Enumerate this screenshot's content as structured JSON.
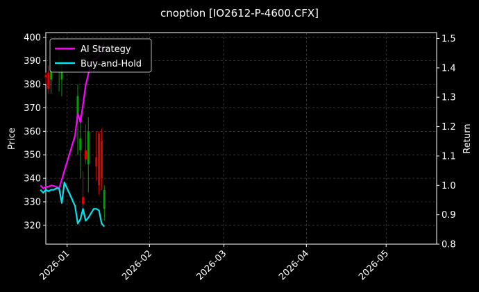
{
  "chart_data": {
    "type": "line",
    "title": "cnoption [IO2612-P-4600.CFX]",
    "xlabel": "",
    "ylabel_left": "Price",
    "ylabel_right": "Return",
    "xlim": [
      "2025-12-24",
      "2026-05-20"
    ],
    "ylim_left": [
      312,
      402
    ],
    "ylim_right": [
      0.8,
      1.52
    ],
    "xticks": [
      "2026-01",
      "2026-02",
      "2026-03",
      "2026-04",
      "2026-05"
    ],
    "yticks_left": [
      320,
      330,
      340,
      350,
      360,
      370,
      380,
      390,
      400
    ],
    "yticks_right": [
      "0.8",
      "0.9",
      "1.0",
      "1.1",
      "1.2",
      "1.3",
      "1.4",
      "1.5"
    ],
    "grid": true,
    "legend": "top-left",
    "colors": {
      "up": "#00a000",
      "down": "#e00000",
      "ai": "#ff00ff",
      "bh": "#00e5ee"
    },
    "candles": [
      {
        "date": "2025-12-24",
        "open": 384,
        "high": 385,
        "low": 380,
        "close": 383
      },
      {
        "date": "2025-12-25",
        "open": 385,
        "high": 388,
        "low": 376,
        "close": 378
      },
      {
        "date": "2025-12-26",
        "open": 382,
        "high": 390,
        "low": 376,
        "close": 386
      },
      {
        "date": "2025-12-29",
        "open": 388,
        "high": 397,
        "low": 377,
        "close": 392
      },
      {
        "date": "2025-12-30",
        "open": 382,
        "high": 392,
        "low": 375,
        "close": 389
      },
      {
        "date": "2026-01-05",
        "open": 367,
        "high": 380,
        "low": 350,
        "close": 375
      },
      {
        "date": "2026-01-06",
        "open": 352,
        "high": 367,
        "low": 340,
        "close": 357
      },
      {
        "date": "2026-01-07",
        "open": 332,
        "high": 343,
        "low": 327,
        "close": 329
      },
      {
        "date": "2026-01-08",
        "open": 352,
        "high": 363,
        "low": 346,
        "close": 348
      },
      {
        "date": "2026-01-09",
        "open": 346,
        "high": 366,
        "low": 334,
        "close": 360
      },
      {
        "date": "2026-01-12",
        "open": 349,
        "high": 360,
        "low": 339,
        "close": 345
      },
      {
        "date": "2026-01-13",
        "open": 359,
        "high": 360,
        "low": 333,
        "close": 337
      },
      {
        "date": "2026-01-14",
        "open": 356,
        "high": 361,
        "low": 335,
        "close": 340
      },
      {
        "date": "2026-01-15",
        "open": 327,
        "high": 337,
        "low": 322,
        "close": 335
      }
    ],
    "series": [
      {
        "name": "AI Strategy",
        "x": [
          "2025-12-22",
          "2025-12-23",
          "2025-12-24",
          "2025-12-25",
          "2025-12-26",
          "2025-12-27",
          "2025-12-28",
          "2025-12-29",
          "2025-12-30",
          "2025-12-31",
          "2026-01-01",
          "2026-01-02",
          "2026-01-03",
          "2026-01-04",
          "2026-01-05",
          "2026-01-06",
          "2026-01-07",
          "2026-01-08",
          "2026-01-09",
          "2026-01-10",
          "2026-01-11",
          "2026-01-12",
          "2026-01-13",
          "2026-01-14",
          "2026-01-15"
        ],
        "values": [
          1.0,
          0.99,
          0.995,
          0.995,
          1.0,
          0.998,
          0.995,
          0.99,
          1.02,
          1.05,
          1.08,
          1.11,
          1.14,
          1.17,
          1.245,
          1.215,
          1.275,
          1.34,
          1.38,
          1.41,
          1.43,
          1.43,
          1.44,
          1.46,
          1.49
        ]
      },
      {
        "name": "Buy-and-Hold",
        "x": [
          "2025-12-22",
          "2025-12-23",
          "2025-12-24",
          "2025-12-25",
          "2025-12-26",
          "2025-12-27",
          "2025-12-28",
          "2025-12-29",
          "2025-12-30",
          "2025-12-31",
          "2026-01-01",
          "2026-01-02",
          "2026-01-03",
          "2026-01-04",
          "2026-01-05",
          "2026-01-06",
          "2026-01-07",
          "2026-01-08",
          "2026-01-09",
          "2026-01-10",
          "2026-01-11",
          "2026-01-12",
          "2026-01-13",
          "2026-01-14",
          "2026-01-15"
        ],
        "values": [
          0.985,
          0.975,
          0.985,
          0.98,
          0.985,
          0.985,
          0.99,
          0.99,
          0.94,
          1.01,
          0.99,
          0.97,
          0.95,
          0.93,
          0.87,
          0.885,
          0.92,
          0.88,
          0.89,
          0.905,
          0.92,
          0.92,
          0.915,
          0.87,
          0.86
        ]
      }
    ]
  }
}
